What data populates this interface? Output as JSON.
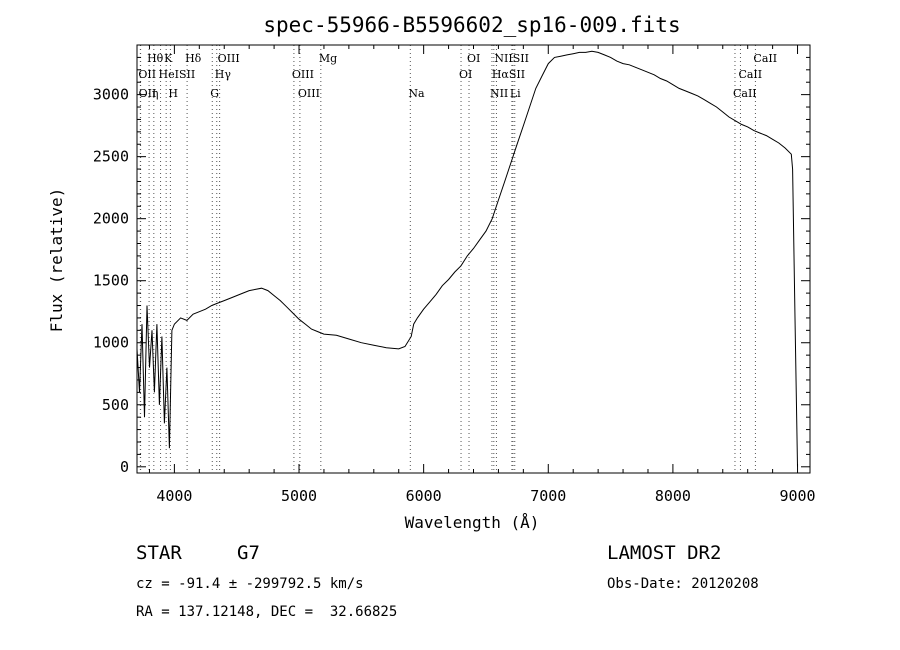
{
  "chart_data": {
    "type": "line",
    "title": "spec-55966-B5596602_sp16-009.fits",
    "xlabel": "Wavelength (Å)",
    "ylabel": "Flux (relative)",
    "xlim": [
      3700,
      9100
    ],
    "ylim": [
      -50,
      3400
    ],
    "xticks": [
      4000,
      5000,
      6000,
      7000,
      8000,
      9000
    ],
    "yticks": [
      0,
      500,
      1000,
      1500,
      2000,
      2500,
      3000
    ],
    "grid": false,
    "series": [
      {
        "x": [
          3700,
          3720,
          3740,
          3760,
          3780,
          3800,
          3820,
          3840,
          3860,
          3880,
          3900,
          3920,
          3940,
          3960,
          3980,
          4000,
          4050,
          4100,
          4150,
          4200,
          4250,
          4300,
          4350,
          4400,
          4450,
          4500,
          4550,
          4600,
          4650,
          4700,
          4750,
          4800,
          4850,
          4900,
          4950,
          5000,
          5050,
          5100,
          5150,
          5200,
          5300,
          5400,
          5500,
          5600,
          5700,
          5800,
          5850,
          5900,
          5920,
          5950,
          6000,
          6050,
          6100,
          6150,
          6200,
          6250,
          6300,
          6350,
          6400,
          6450,
          6500,
          6550,
          6600,
          6650,
          6700,
          6750,
          6800,
          6850,
          6900,
          6950,
          7000,
          7050,
          7100,
          7150,
          7200,
          7250,
          7300,
          7350,
          7400,
          7450,
          7500,
          7550,
          7600,
          7650,
          7700,
          7750,
          7800,
          7850,
          7900,
          7950,
          8000,
          8050,
          8100,
          8150,
          8200,
          8250,
          8300,
          8350,
          8400,
          8450,
          8500,
          8550,
          8600,
          8650,
          8700,
          8750,
          8800,
          8850,
          8900,
          8950,
          8960,
          8980,
          9000
        ],
        "y": [
          950,
          600,
          1150,
          400,
          1300,
          800,
          1100,
          600,
          1150,
          500,
          1050,
          350,
          800,
          150,
          1100,
          1150,
          1200,
          1180,
          1230,
          1250,
          1270,
          1300,
          1320,
          1340,
          1360,
          1380,
          1400,
          1420,
          1430,
          1440,
          1420,
          1380,
          1340,
          1290,
          1240,
          1190,
          1150,
          1110,
          1090,
          1070,
          1060,
          1030,
          1000,
          980,
          960,
          950,
          970,
          1050,
          1150,
          1200,
          1270,
          1330,
          1390,
          1460,
          1510,
          1570,
          1620,
          1700,
          1760,
          1830,
          1900,
          2000,
          2150,
          2300,
          2450,
          2600,
          2750,
          2900,
          3050,
          3150,
          3250,
          3300,
          3310,
          3320,
          3330,
          3340,
          3340,
          3350,
          3340,
          3320,
          3300,
          3270,
          3250,
          3240,
          3220,
          3200,
          3180,
          3160,
          3130,
          3110,
          3080,
          3050,
          3030,
          3010,
          2990,
          2960,
          2930,
          2900,
          2860,
          2820,
          2790,
          2760,
          2740,
          2710,
          2690,
          2670,
          2640,
          2610,
          2570,
          2520,
          2400,
          1200,
          0
        ]
      }
    ],
    "lines": [
      {
        "label": "Hθ",
        "wave": 3797,
        "row": 0
      },
      {
        "label": "K",
        "wave": 3934,
        "row": 0
      },
      {
        "label": "Hδ",
        "wave": 4102,
        "row": 0
      },
      {
        "label": "OIII",
        "wave": 4363,
        "row": 0
      },
      {
        "label": "Mg",
        "wave": 5175,
        "row": 0
      },
      {
        "label": "OI",
        "wave": 6364,
        "row": 0
      },
      {
        "label": "NIISII",
        "wave": 6584,
        "row": 0
      },
      {
        "label": "CaII",
        "wave": 8662,
        "row": 0
      },
      {
        "label": "OII",
        "wave": 3727,
        "row": 1
      },
      {
        "label": "HeISII",
        "wave": 3889,
        "row": 1
      },
      {
        "label": "Hγ",
        "wave": 4340,
        "row": 1
      },
      {
        "label": "OIII",
        "wave": 4959,
        "row": 1
      },
      {
        "label": "OI",
        "wave": 6300,
        "row": 1
      },
      {
        "label": "HαSII",
        "wave": 6563,
        "row": 1
      },
      {
        "label": "CaII",
        "wave": 8542,
        "row": 1
      },
      {
        "label": "OII",
        "wave": 3729,
        "row": 2
      },
      {
        "label": "η",
        "wave": 3835,
        "row": 2
      },
      {
        "label": "H",
        "wave": 3968,
        "row": 2
      },
      {
        "label": "G",
        "wave": 4304,
        "row": 2
      },
      {
        "label": "OIII",
        "wave": 5007,
        "row": 2
      },
      {
        "label": "Na",
        "wave": 5893,
        "row": 2
      },
      {
        "label": "NII",
        "wave": 6548,
        "row": 2
      },
      {
        "label": "Li",
        "wave": 6708,
        "row": 2
      },
      {
        "label": "CaII",
        "wave": 8498,
        "row": 2
      }
    ],
    "extra_line_waves": [
      6717,
      6731
    ]
  },
  "info": {
    "object_class": "STAR",
    "subclass": "G7",
    "survey": "LAMOST DR2",
    "redshift_line": "cz = -91.4 ± -299792.5 km/s",
    "obs_date": "Obs-Date: 20120208",
    "coords": "RA = 137.12148, DEC =  32.66825"
  }
}
